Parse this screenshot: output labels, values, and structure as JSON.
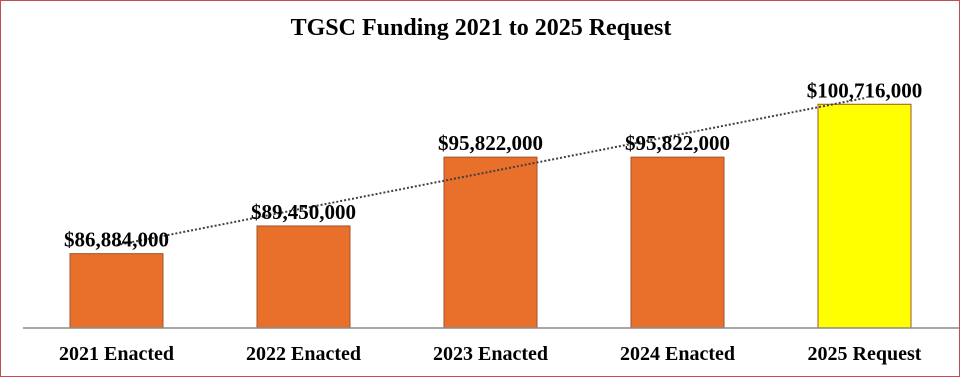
{
  "chart_data": {
    "type": "bar",
    "title": "TGSC Funding 2021 to 2025 Request",
    "categories": [
      "2021 Enacted",
      "2022 Enacted",
      "2023 Enacted",
      "2024 Enacted",
      "2025 Request"
    ],
    "values": [
      86884000,
      89450000,
      95822000,
      95822000,
      100716000
    ],
    "data_labels": [
      "$86,884,000",
      "$89,450,000",
      "$95,822,000",
      "$95,822,000",
      "$100,716,000"
    ],
    "bar_colors": [
      "#e8702a",
      "#e8702a",
      "#e8702a",
      "#e8702a",
      "#ffff00"
    ],
    "bar_outline": "#a0522d",
    "trendline": {
      "type": "linear",
      "style": "dotted",
      "color": "#404040"
    },
    "ylim": [
      80000000,
      102500000
    ],
    "xlabel": "",
    "ylabel": "",
    "grid": false,
    "legend": "none"
  }
}
